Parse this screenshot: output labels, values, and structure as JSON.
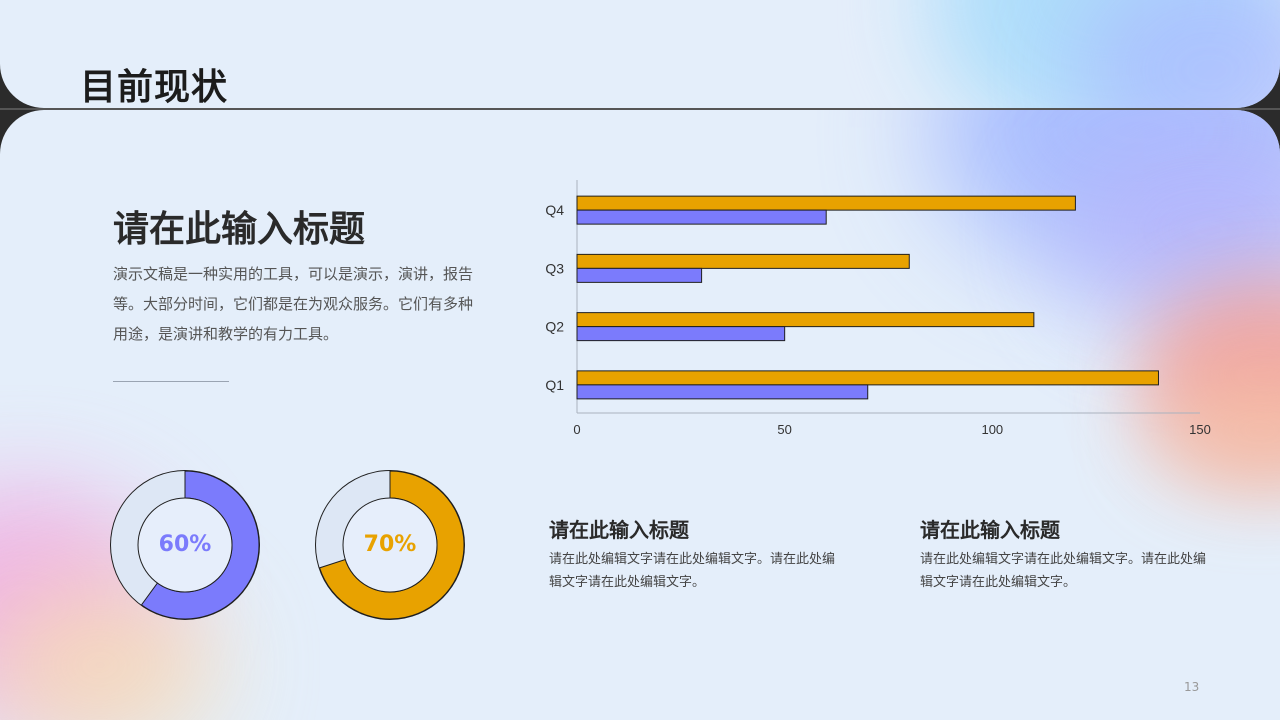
{
  "header": {
    "title": "目前现状"
  },
  "section": {
    "title": "请在此输入标题",
    "body": "演示文稿是一种实用的工具，可以是演示，演讲，报告等。大部分时间，它们都是在为观众服务。它们有多种用途，是演讲和教学的有力工具。"
  },
  "colors": {
    "orange": "#e8a200",
    "purple": "#7b7bfc",
    "donut_track": "#dde7f5"
  },
  "chart_data": [
    {
      "type": "bar",
      "orientation": "horizontal",
      "categories": [
        "Q1",
        "Q2",
        "Q3",
        "Q4"
      ],
      "series": [
        {
          "values": [
            140,
            110,
            80,
            120
          ],
          "color": "#e8a200"
        },
        {
          "values": [
            70,
            50,
            30,
            60
          ],
          "color": "#7b7bfc"
        }
      ],
      "xlim": [
        0,
        150
      ],
      "xticks": [
        "0",
        "50",
        "100",
        "150"
      ],
      "grid": false,
      "legend": "none"
    },
    {
      "type": "pie",
      "style": "donut",
      "value": 60,
      "label": "60%",
      "color": "#7b7bfc"
    },
    {
      "type": "pie",
      "style": "donut",
      "value": 70,
      "label": "70%",
      "color": "#e8a200"
    }
  ],
  "cards": [
    {
      "title": "请在此输入标题",
      "text": "请在此处编辑文字请在此处编辑文字。请在此处编辑文字请在此处编辑文字。"
    },
    {
      "title": "请在此输入标题",
      "text": "请在此处编辑文字请在此处编辑文字。请在此处编辑文字请在此处编辑文字。"
    }
  ],
  "page_number": "13"
}
